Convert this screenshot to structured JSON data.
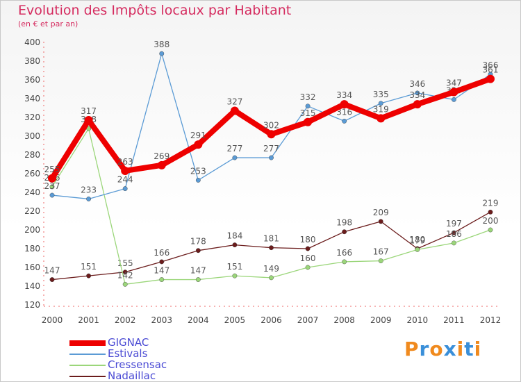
{
  "title": "Evolution des Impôts locaux par Habitant",
  "subtitle": "(en € et par an)",
  "brand": {
    "text": "Proxiti",
    "letter_colors": [
      "#f08a1e",
      "#3a8fd9",
      "#f08a1e",
      "#3a8fd9",
      "#f08a1e",
      "#3a8fd9",
      "#f08a1e"
    ]
  },
  "chart_data": {
    "type": "line",
    "x": [
      "2000",
      "2001",
      "2002",
      "2003",
      "2004",
      "2005",
      "2006",
      "2007",
      "2008",
      "2009",
      "2010",
      "2011",
      "2012"
    ],
    "ylim": [
      120,
      400
    ],
    "yticks": [
      120,
      140,
      160,
      180,
      200,
      220,
      240,
      260,
      280,
      300,
      320,
      340,
      360,
      380,
      400
    ],
    "grid": false,
    "legend_position": "bottom-left",
    "series": [
      {
        "name": "Nadaillac",
        "color": "#6b1c1c",
        "values": [
          147,
          151,
          155,
          166,
          178,
          184,
          181,
          180,
          198,
          209,
          180,
          197,
          219
        ],
        "labels": [
          "147",
          "151",
          "155",
          "166",
          "178",
          "184",
          "181",
          "180",
          "198",
          "209",
          "180",
          "197",
          "219"
        ]
      },
      {
        "name": "Cressensac",
        "color": "#9bd67a",
        "values": [
          246,
          308,
          142,
          147,
          147,
          151,
          149,
          160,
          166,
          167,
          179,
          186,
          200
        ],
        "labels": [
          "246",
          "308",
          "142",
          "147",
          "147",
          "151",
          "149",
          "160",
          "166",
          "167",
          "179",
          "186",
          "200"
        ]
      },
      {
        "name": "Estivals",
        "color": "#5b9bd5",
        "values": [
          237,
          233,
          244,
          388,
          253,
          277,
          277,
          332,
          316,
          335,
          346,
          339,
          366
        ],
        "labels": [
          "237",
          "233",
          "244",
          "388",
          "253",
          "277",
          "277",
          "332",
          "316",
          "335",
          "346",
          "339",
          "366"
        ]
      },
      {
        "name": "GIGNAC",
        "color": "#ee0000",
        "values": [
          255,
          317,
          263,
          269,
          291,
          327,
          302,
          315,
          334,
          319,
          334,
          347,
          361
        ],
        "labels": [
          "255",
          "317",
          "263",
          "269",
          "291",
          "327",
          "302",
          "315",
          "334",
          "319",
          "334",
          "347",
          "361"
        ]
      }
    ]
  },
  "legend": {
    "items": [
      {
        "label": "GIGNAC",
        "color": "#ee0000",
        "thickness": 8
      },
      {
        "label": "Estivals",
        "color": "#5b9bd5",
        "thickness": 2
      },
      {
        "label": "Cressensac",
        "color": "#9bd67a",
        "thickness": 2
      },
      {
        "label": "Nadaillac",
        "color": "#6b1c1c",
        "thickness": 2
      }
    ]
  }
}
